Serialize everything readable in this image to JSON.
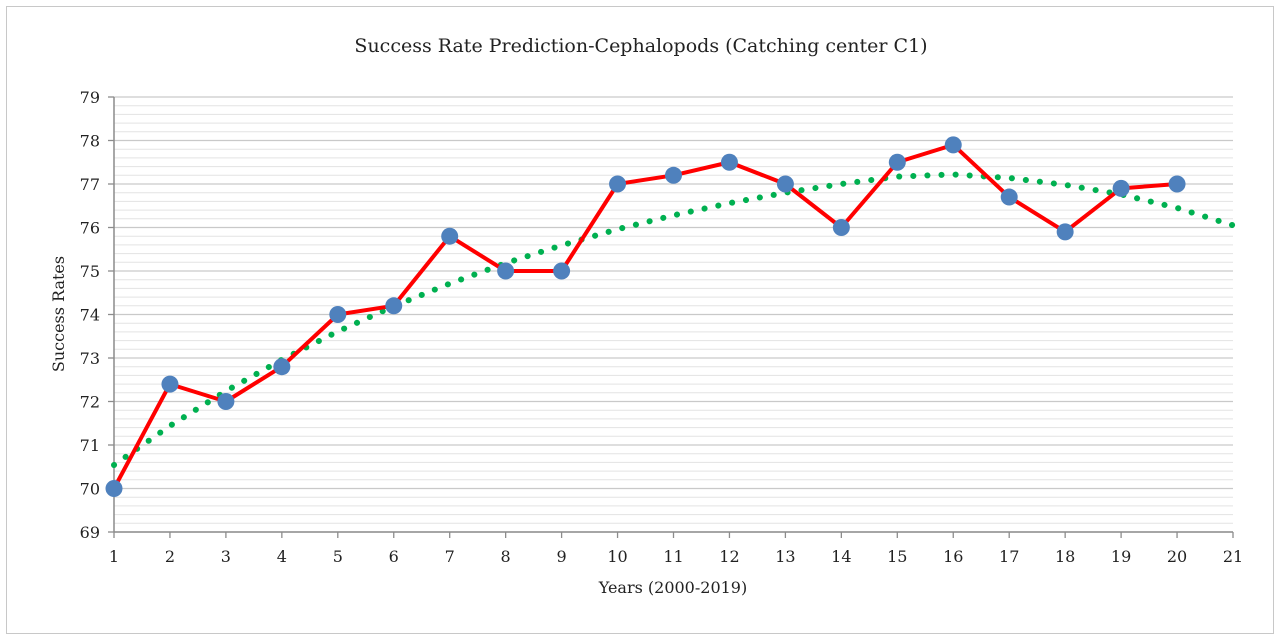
{
  "chart_data": {
    "type": "line",
    "title": "Success Rate Prediction-Cephalopods (Catching center C1)",
    "xlabel": "Years (2000-2019)",
    "ylabel": "Success Rates",
    "xlim": [
      1,
      21
    ],
    "ylim": [
      69,
      79
    ],
    "x_ticks": [
      "1",
      "2",
      "3",
      "4",
      "5",
      "6",
      "7",
      "8",
      "9",
      "10",
      "11",
      "12",
      "13",
      "14",
      "15",
      "16",
      "17",
      "18",
      "19",
      "20",
      "21"
    ],
    "y_ticks": [
      "69",
      "70",
      "71",
      "72",
      "73",
      "74",
      "75",
      "76",
      "77",
      "78",
      "79"
    ],
    "grid": true,
    "legend": "none",
    "series": [
      {
        "style": "solid-line-with-markers",
        "line_color": "#ff0000",
        "marker_color": "#4f81bd",
        "x": [
          1,
          2,
          3,
          4,
          5,
          6,
          7,
          8,
          9,
          10,
          11,
          12,
          13,
          14,
          15,
          16,
          17,
          18,
          19,
          20
        ],
        "values": [
          70.0,
          72.4,
          72.0,
          72.8,
          74.0,
          74.2,
          75.8,
          75.0,
          75.0,
          77.0,
          77.2,
          77.5,
          77.0,
          76.0,
          77.5,
          77.9,
          76.7,
          75.9,
          76.9,
          77.0
        ]
      },
      {
        "style": "dotted-trendline",
        "line_color": "#00b050",
        "x": [
          1,
          2,
          3,
          4,
          5,
          6,
          7,
          8,
          9,
          10,
          11,
          12,
          13,
          14,
          15,
          16,
          17,
          18,
          19,
          20,
          21
        ],
        "values": [
          70.54,
          71.44,
          72.24,
          72.96,
          73.61,
          74.19,
          74.71,
          75.18,
          75.59,
          75.96,
          76.28,
          76.56,
          76.8,
          77.0,
          77.17,
          77.22,
          77.14,
          76.98,
          76.76,
          76.45,
          76.05
        ]
      }
    ]
  }
}
